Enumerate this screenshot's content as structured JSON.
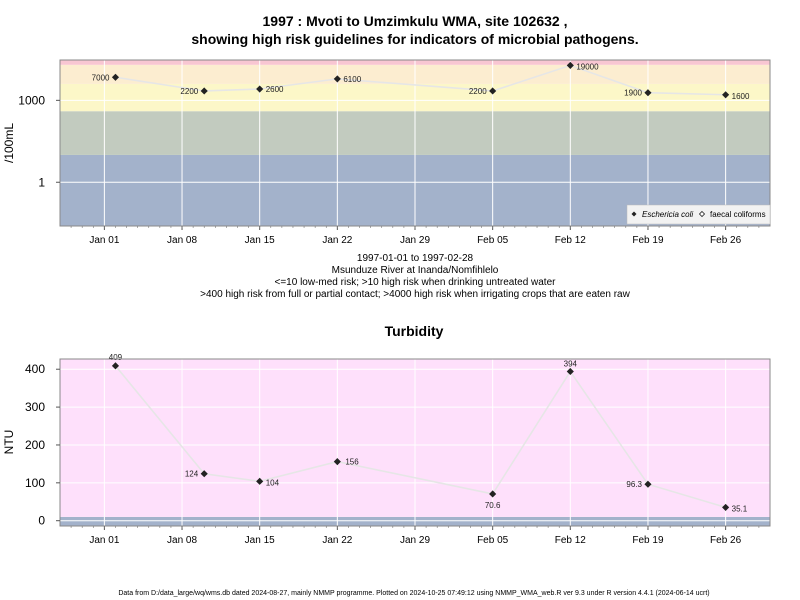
{
  "chart_data": [
    {
      "type": "line",
      "title_line1": "1997 : Mvoti to Umzimkulu WMA, site 102632 ,",
      "title_line2": "showing high risk guidelines for indicators of microbial pathogens.",
      "xlabel_lines": [
        "1997-01-01 to 1997-02-28",
        "Msunduze River at Inanda/Nomfihlelo",
        "<=10 low-med risk; >10 high risk when drinking untreated water",
        ">400 high risk from full or partial contact; >4000 high risk when irrigating crops that are eaten raw"
      ],
      "ylabel": "/100mL",
      "y_scale": "log10",
      "ylim": [
        0.025,
        30000
      ],
      "y_ticks": [
        1,
        1000
      ],
      "y_tick_labels": [
        "1",
        "1000"
      ],
      "risk_bands": [
        {
          "from": 0.025,
          "to": 10,
          "color": "#a3b2cb"
        },
        {
          "from": 10,
          "to": 400,
          "color": "#c2cbbf"
        },
        {
          "from": 400,
          "to": 4000,
          "color": "#fcf7c8"
        },
        {
          "from": 4000,
          "to": 20000,
          "color": "#fcedd0"
        },
        {
          "from": 20000,
          "to": 30000,
          "color": "#f8c6d2"
        }
      ],
      "x_range": [
        "1996-12-28",
        "1997-03-02"
      ],
      "x_ticks": [
        "1997-01-01",
        "1997-01-08",
        "1997-01-15",
        "1997-01-22",
        "1997-01-29",
        "1997-02-05",
        "1997-02-12",
        "1997-02-19",
        "1997-02-26"
      ],
      "x_tick_labels": [
        "Jan 01",
        "Jan 08",
        "Jan 15",
        "Jan 22",
        "Jan 29",
        "Feb 05",
        "Feb 12",
        "Feb 19",
        "Feb 26"
      ],
      "series": [
        {
          "name": "Eschericia coli",
          "marker": "filled-diamond",
          "x": [
            "1997-01-02",
            "1997-01-10",
            "1997-01-15",
            "1997-01-22",
            "1997-02-05",
            "1997-02-12",
            "1997-02-19",
            "1997-02-26"
          ],
          "y": [
            7000,
            2200,
            2600,
            6100,
            2200,
            19000,
            1900,
            1600
          ],
          "labels": [
            "7000",
            "2200",
            "2600",
            "6100",
            "2200",
            "19000",
            "1900",
            "1600"
          ]
        },
        {
          "name": "faecal coliforms",
          "marker": "open-diamond",
          "x": [],
          "y": []
        }
      ],
      "legend_position": "bottom-right"
    },
    {
      "type": "line",
      "title": "Turbidity",
      "ylabel": "NTU",
      "ylim": [
        -14,
        427
      ],
      "y_ticks": [
        0,
        100,
        200,
        300,
        400
      ],
      "y_tick_labels": [
        "0",
        "100",
        "200",
        "300",
        "400"
      ],
      "risk_bands": [
        {
          "from": -14,
          "to": 10,
          "color": "#a3b2cb"
        },
        {
          "from": 10,
          "to": 427,
          "color": "#fee0fb"
        }
      ],
      "x_range": [
        "1996-12-28",
        "1997-03-02"
      ],
      "x_ticks": [
        "1997-01-01",
        "1997-01-08",
        "1997-01-15",
        "1997-01-22",
        "1997-01-29",
        "1997-02-05",
        "1997-02-12",
        "1997-02-19",
        "1997-02-26"
      ],
      "x_tick_labels": [
        "Jan 01",
        "Jan 08",
        "Jan 15",
        "Jan 22",
        "Jan 29",
        "Feb 05",
        "Feb 12",
        "Feb 19",
        "Feb 26"
      ],
      "series": [
        {
          "x": [
            "1997-01-02",
            "1997-01-10",
            "1997-01-15",
            "1997-01-22",
            "1997-02-05",
            "1997-02-12",
            "1997-02-19",
            "1997-02-26"
          ],
          "y": [
            409,
            124,
            104,
            156,
            70.6,
            394,
            96.3,
            35.1
          ],
          "labels": [
            "409",
            "124",
            "104",
            "156",
            "70.6",
            "394",
            "96.3",
            "35.1"
          ]
        }
      ]
    }
  ],
  "footer": "Data from D:/data_large/wq/wms.db dated 2024-08-27, mainly NMMP programme. Plotted on 2024-10-25 07:49:12 using NMMP_WMA_web.R ver 9.3 under R version 4.4.1 (2024-06-14 ucrt)"
}
